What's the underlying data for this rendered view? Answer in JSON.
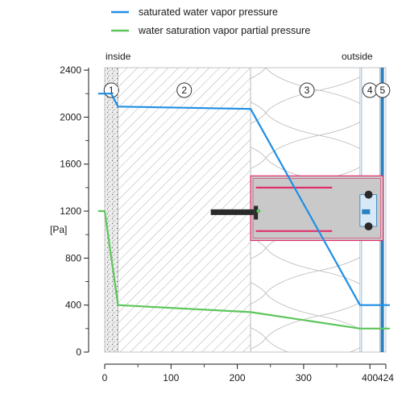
{
  "chart_data": {
    "type": "line",
    "ylabel": "[Pa]",
    "xlim": [
      -10,
      430
    ],
    "ylim": [
      0,
      2400
    ],
    "x_ticks": [
      0,
      100,
      200,
      300,
      400,
      424
    ],
    "x_tick_labels": [
      "0",
      "100",
      "200",
      "300",
      "400",
      "424"
    ],
    "y_ticks": [
      0,
      400,
      800,
      1200,
      1600,
      2000,
      2400
    ],
    "y_tick_labels": [
      "0",
      "400",
      "800",
      "1200",
      "1600",
      "2000",
      "2400"
    ],
    "legend": {
      "position": "top"
    },
    "zone_labels": {
      "inside": "inside",
      "outside": "outside"
    },
    "layers": [
      {
        "id": "1",
        "label": "1",
        "x_start": 0,
        "x_end": 20,
        "pattern": "plaster",
        "label_x": 10
      },
      {
        "id": "2",
        "label": "2",
        "x_start": 20,
        "x_end": 220,
        "pattern": "hatch",
        "label_x": 120
      },
      {
        "id": "3",
        "label": "3",
        "x_start": 220,
        "x_end": 385,
        "pattern": "insulation",
        "label_x": 305
      },
      {
        "id": "4",
        "label": "4",
        "x_start": 385,
        "x_end": 415,
        "pattern": "air",
        "label_x": 400
      },
      {
        "id": "5",
        "label": "5",
        "x_start": 415,
        "x_end": 424,
        "pattern": "cladding",
        "label_x": 419
      }
    ],
    "series": [
      {
        "name": "saturated water vapor pressure",
        "color": "#1f8fe5",
        "x": [
          -10,
          0,
          10,
          20,
          220,
          385,
          424,
          430
        ],
        "y": [
          2200,
          2200,
          2200,
          2090,
          2070,
          400,
          400,
          400
        ]
      },
      {
        "name": "water saturation vapor partial pressure",
        "color": "#5cc65a",
        "x": [
          -10,
          0,
          20,
          220,
          385,
          424,
          430
        ],
        "y": [
          1200,
          1200,
          400,
          340,
          200,
          200,
          200
        ]
      }
    ],
    "bracket": {
      "x_start": 220,
      "x_end": 420,
      "y_bottom": 950,
      "y_top": 1500,
      "fill_color": "#c9c9c9",
      "border_color": "#e0306a"
    }
  }
}
